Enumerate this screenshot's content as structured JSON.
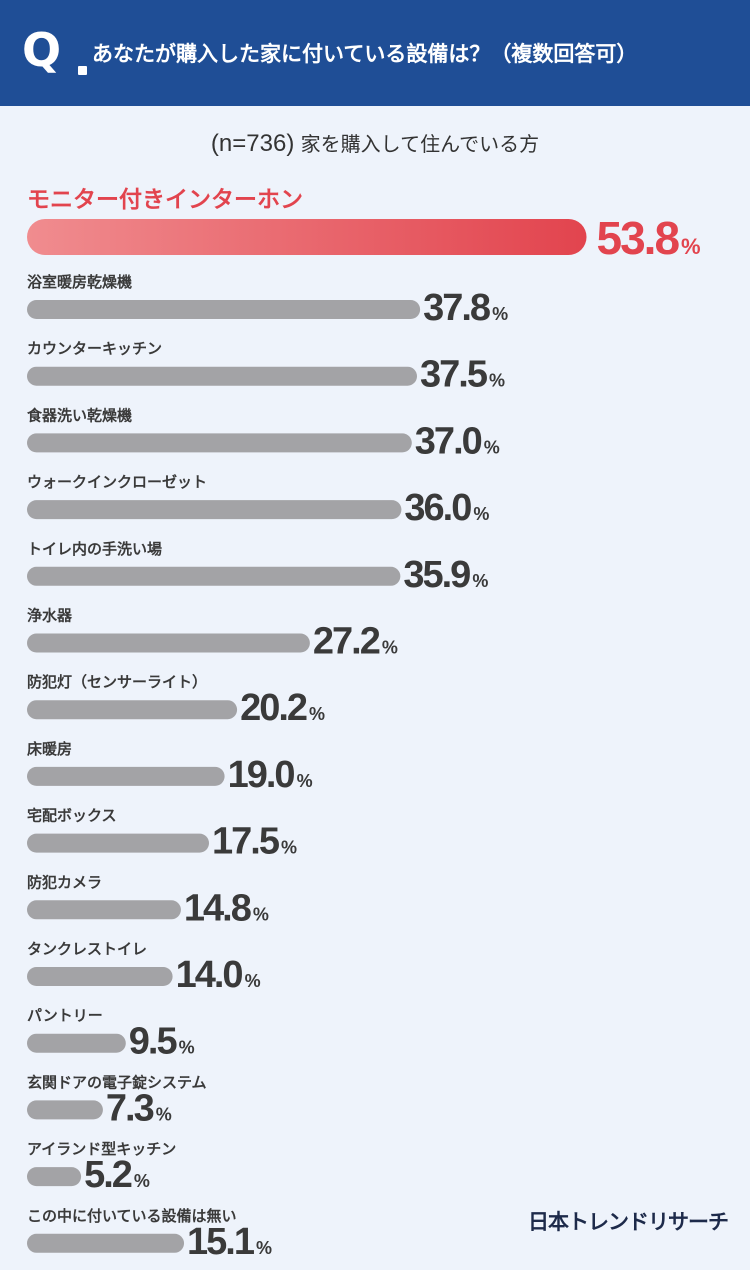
{
  "header": {
    "q_letter": "Q",
    "question": "あなたが購入した家に付いている設備は？（複数回答可）"
  },
  "subtitle": {
    "n": "(n=736)",
    "text": "家を購入して住んでいる方"
  },
  "logo": "日本トレンドリサーチ",
  "colors": {
    "header": "#1f4e96",
    "background": "#eef3fb",
    "highlight": "#e2444e",
    "bar": "#a3a3a6",
    "value_text": "#3a3a3a"
  },
  "chart_data": {
    "type": "bar",
    "orientation": "horizontal",
    "unit": "%",
    "categories": [
      "モニター付きインターホン",
      "浴室暖房乾燥機",
      "カウンターキッチン",
      "食器洗い乾燥機",
      "ウォークインクローゼット",
      "トイレ内の手洗い場",
      "浄水器",
      "防犯灯（センサーライト）",
      "床暖房",
      "宅配ボックス",
      "防犯カメラ",
      "タンクレストイレ",
      "パントリー",
      "玄関ドアの電子錠システム",
      "アイランド型キッチン",
      "この中に付いている設備は無い"
    ],
    "values": [
      53.8,
      37.8,
      37.5,
      37.0,
      36.0,
      35.9,
      27.2,
      20.2,
      19.0,
      17.5,
      14.8,
      14.0,
      9.5,
      7.3,
      5.2,
      15.1
    ],
    "labels": [
      "53.8",
      "37.8",
      "37.5",
      "37.0",
      "36.0",
      "35.9",
      "27.2",
      "20.2",
      "19.0",
      "17.5",
      "14.8",
      "14.0",
      "9.5",
      "7.3",
      "5.2",
      "15.1"
    ],
    "highlight_index": 0
  }
}
